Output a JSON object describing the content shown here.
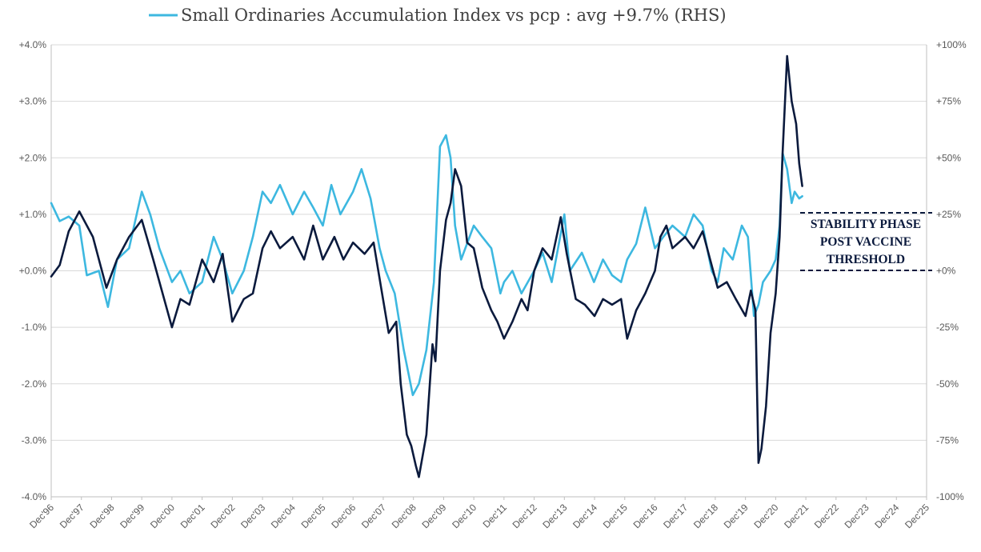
{
  "chart_data": {
    "type": "line",
    "legend": {
      "entries": [
        "Small Ordinaries Accumulation Index vs pcp : avg +9.7% (RHS)"
      ],
      "placement": "top-center"
    },
    "x_ticks": [
      "Dec'96",
      "Dec'97",
      "Dec'98",
      "Dec'99",
      "Dec'00",
      "Dec'01",
      "Dec'02",
      "Dec'03",
      "Dec'04",
      "Dec'05",
      "Dec'06",
      "Dec'07",
      "Dec'08",
      "Dec'09",
      "Dec'10",
      "Dec'11",
      "Dec'12",
      "Dec'13",
      "Dec'14",
      "Dec'15",
      "Dec'16",
      "Dec'17",
      "Dec'18",
      "Dec'19",
      "Dec'20",
      "Dec'21",
      "Dec'22",
      "Dec'23",
      "Dec'24",
      "Dec'25"
    ],
    "y_left": {
      "ticks": [
        "+4.0%",
        "+3.0%",
        "+2.0%",
        "+1.0%",
        "+0.0%",
        "-1.0%",
        "-2.0%",
        "-3.0%",
        "-4.0%"
      ],
      "range": [
        -4.0,
        4.0
      ]
    },
    "y_right": {
      "ticks": [
        "+100%",
        "+75%",
        "+50%",
        "+25%",
        "+0%",
        "-25%",
        "-50%",
        "-75%",
        "-100%"
      ],
      "range": [
        -100,
        100
      ]
    },
    "grid": "horizontal",
    "series": [
      {
        "axis": "left",
        "color": "#0b1a3d",
        "points": [
          [
            1996.92,
            -0.1
          ],
          [
            1997.2,
            0.1
          ],
          [
            1997.5,
            0.7
          ],
          [
            1997.85,
            1.05
          ],
          [
            1998.3,
            0.6
          ],
          [
            1998.75,
            -0.3
          ],
          [
            1999.1,
            0.2
          ],
          [
            1999.5,
            0.6
          ],
          [
            1999.92,
            0.9
          ],
          [
            2000.3,
            0.2
          ],
          [
            2000.92,
            -1.0
          ],
          [
            2001.2,
            -0.5
          ],
          [
            2001.5,
            -0.6
          ],
          [
            2001.92,
            0.2
          ],
          [
            2002.3,
            -0.2
          ],
          [
            2002.6,
            0.3
          ],
          [
            2002.92,
            -0.9
          ],
          [
            2003.3,
            -0.5
          ],
          [
            2003.6,
            -0.4
          ],
          [
            2003.92,
            0.4
          ],
          [
            2004.2,
            0.7
          ],
          [
            2004.5,
            0.4
          ],
          [
            2004.92,
            0.6
          ],
          [
            2005.3,
            0.2
          ],
          [
            2005.6,
            0.8
          ],
          [
            2005.92,
            0.2
          ],
          [
            2006.3,
            0.6
          ],
          [
            2006.6,
            0.2
          ],
          [
            2006.92,
            0.5
          ],
          [
            2007.3,
            0.3
          ],
          [
            2007.6,
            0.5
          ],
          [
            2007.85,
            -0.3
          ],
          [
            2008.1,
            -1.1
          ],
          [
            2008.35,
            -0.9
          ],
          [
            2008.5,
            -2.0
          ],
          [
            2008.7,
            -2.9
          ],
          [
            2008.85,
            -3.1
          ],
          [
            2009.0,
            -3.45
          ],
          [
            2009.1,
            -3.65
          ],
          [
            2009.35,
            -2.9
          ],
          [
            2009.55,
            -1.3
          ],
          [
            2009.65,
            -1.6
          ],
          [
            2009.8,
            0.0
          ],
          [
            2010.0,
            0.9
          ],
          [
            2010.15,
            1.2
          ],
          [
            2010.3,
            1.8
          ],
          [
            2010.5,
            1.5
          ],
          [
            2010.7,
            0.5
          ],
          [
            2010.92,
            0.4
          ],
          [
            2011.2,
            -0.3
          ],
          [
            2011.5,
            -0.7
          ],
          [
            2011.7,
            -0.9
          ],
          [
            2011.92,
            -1.2
          ],
          [
            2012.2,
            -0.9
          ],
          [
            2012.5,
            -0.5
          ],
          [
            2012.7,
            -0.7
          ],
          [
            2012.92,
            0.0
          ],
          [
            2013.2,
            0.4
          ],
          [
            2013.5,
            0.2
          ],
          [
            2013.8,
            0.95
          ],
          [
            2014.0,
            0.3
          ],
          [
            2014.3,
            -0.5
          ],
          [
            2014.6,
            -0.6
          ],
          [
            2014.92,
            -0.8
          ],
          [
            2015.2,
            -0.5
          ],
          [
            2015.5,
            -0.6
          ],
          [
            2015.8,
            -0.5
          ],
          [
            2016.0,
            -1.2
          ],
          [
            2016.3,
            -0.7
          ],
          [
            2016.6,
            -0.4
          ],
          [
            2016.92,
            0.0
          ],
          [
            2017.1,
            0.6
          ],
          [
            2017.3,
            0.8
          ],
          [
            2017.5,
            0.4
          ],
          [
            2017.92,
            0.6
          ],
          [
            2018.2,
            0.4
          ],
          [
            2018.5,
            0.7
          ],
          [
            2018.75,
            0.2
          ],
          [
            2019.0,
            -0.3
          ],
          [
            2019.3,
            -0.2
          ],
          [
            2019.6,
            -0.5
          ],
          [
            2019.92,
            -0.8
          ],
          [
            2020.1,
            -0.35
          ],
          [
            2020.25,
            -0.7
          ],
          [
            2020.35,
            -3.4
          ],
          [
            2020.45,
            -3.15
          ],
          [
            2020.6,
            -2.4
          ],
          [
            2020.75,
            -1.1
          ],
          [
            2020.92,
            -0.4
          ],
          [
            2021.05,
            0.6
          ],
          [
            2021.15,
            2.1
          ],
          [
            2021.3,
            3.8
          ],
          [
            2021.45,
            3.0
          ],
          [
            2021.6,
            2.6
          ],
          [
            2021.7,
            1.9
          ],
          [
            2021.8,
            1.5
          ]
        ]
      },
      {
        "axis": "right",
        "color": "#3db8e0",
        "points": [
          [
            1996.92,
            30
          ],
          [
            1997.2,
            22
          ],
          [
            1997.5,
            24
          ],
          [
            1997.85,
            20
          ],
          [
            1998.1,
            -2
          ],
          [
            1998.5,
            0
          ],
          [
            1998.8,
            -16
          ],
          [
            1999.1,
            5
          ],
          [
            1999.5,
            10
          ],
          [
            1999.92,
            35
          ],
          [
            2000.2,
            25
          ],
          [
            2000.5,
            10
          ],
          [
            2000.92,
            -5
          ],
          [
            2001.2,
            0
          ],
          [
            2001.5,
            -10
          ],
          [
            2001.92,
            -5
          ],
          [
            2002.3,
            15
          ],
          [
            2002.6,
            5
          ],
          [
            2002.92,
            -10
          ],
          [
            2003.3,
            0
          ],
          [
            2003.6,
            15
          ],
          [
            2003.92,
            35
          ],
          [
            2004.2,
            30
          ],
          [
            2004.5,
            38
          ],
          [
            2004.92,
            25
          ],
          [
            2005.3,
            35
          ],
          [
            2005.6,
            28
          ],
          [
            2005.92,
            20
          ],
          [
            2006.2,
            38
          ],
          [
            2006.5,
            25
          ],
          [
            2006.92,
            35
          ],
          [
            2007.2,
            45
          ],
          [
            2007.5,
            32
          ],
          [
            2007.8,
            10
          ],
          [
            2008.0,
            0
          ],
          [
            2008.3,
            -10
          ],
          [
            2008.6,
            -35
          ],
          [
            2008.9,
            -55
          ],
          [
            2009.1,
            -50
          ],
          [
            2009.35,
            -35
          ],
          [
            2009.6,
            -5
          ],
          [
            2009.8,
            55
          ],
          [
            2010.0,
            60
          ],
          [
            2010.15,
            50
          ],
          [
            2010.3,
            20
          ],
          [
            2010.5,
            5
          ],
          [
            2010.92,
            20
          ],
          [
            2011.2,
            15
          ],
          [
            2011.5,
            10
          ],
          [
            2011.8,
            -10
          ],
          [
            2011.92,
            -5
          ],
          [
            2012.2,
            0
          ],
          [
            2012.5,
            -10
          ],
          [
            2012.92,
            0
          ],
          [
            2013.2,
            8
          ],
          [
            2013.5,
            -5
          ],
          [
            2013.92,
            25
          ],
          [
            2014.1,
            0
          ],
          [
            2014.5,
            8
          ],
          [
            2014.9,
            -5
          ],
          [
            2015.2,
            5
          ],
          [
            2015.5,
            -2
          ],
          [
            2015.8,
            -5
          ],
          [
            2016.0,
            5
          ],
          [
            2016.3,
            12
          ],
          [
            2016.6,
            28
          ],
          [
            2016.92,
            10
          ],
          [
            2017.2,
            15
          ],
          [
            2017.5,
            20
          ],
          [
            2017.92,
            15
          ],
          [
            2018.2,
            25
          ],
          [
            2018.5,
            20
          ],
          [
            2018.8,
            0
          ],
          [
            2019.0,
            -5
          ],
          [
            2019.2,
            10
          ],
          [
            2019.5,
            5
          ],
          [
            2019.8,
            20
          ],
          [
            2020.0,
            15
          ],
          [
            2020.2,
            -20
          ],
          [
            2020.35,
            -15
          ],
          [
            2020.5,
            -5
          ],
          [
            2020.75,
            0
          ],
          [
            2020.92,
            5
          ],
          [
            2021.05,
            20
          ],
          [
            2021.15,
            52
          ],
          [
            2021.3,
            45
          ],
          [
            2021.45,
            30
          ],
          [
            2021.55,
            35
          ],
          [
            2021.7,
            32
          ],
          [
            2021.8,
            33
          ]
        ]
      }
    ],
    "annotation": {
      "lines": [
        "STABILITY PHASE",
        "POST VACCINE",
        "THRESHOLD"
      ],
      "bracket_levels_pct": [
        25,
        0
      ]
    }
  }
}
